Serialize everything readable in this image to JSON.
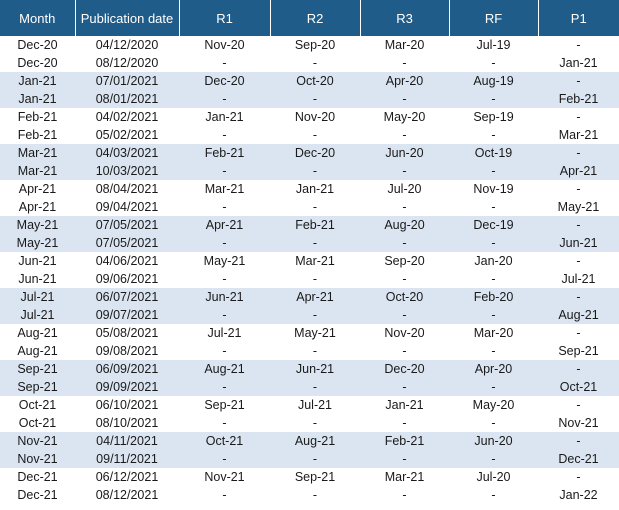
{
  "headers": [
    "Month",
    "Publication date",
    "R1",
    "R2",
    "R3",
    "RF",
    "P1"
  ],
  "rows": [
    [
      "Dec-20",
      "04/12/2020",
      "Nov-20",
      "Sep-20",
      "Mar-20",
      "Jul-19",
      "-"
    ],
    [
      "Dec-20",
      "08/12/2020",
      "-",
      "-",
      "-",
      "-",
      "Jan-21"
    ],
    [
      "Jan-21",
      "07/01/2021",
      "Dec-20",
      "Oct-20",
      "Apr-20",
      "Aug-19",
      "-"
    ],
    [
      "Jan-21",
      "08/01/2021",
      "-",
      "-",
      "-",
      "-",
      "Feb-21"
    ],
    [
      "Feb-21",
      "04/02/2021",
      "Jan-21",
      "Nov-20",
      "May-20",
      "Sep-19",
      "-"
    ],
    [
      "Feb-21",
      "05/02/2021",
      "-",
      "-",
      "-",
      "-",
      "Mar-21"
    ],
    [
      "Mar-21",
      "04/03/2021",
      "Feb-21",
      "Dec-20",
      "Jun-20",
      "Oct-19",
      "-"
    ],
    [
      "Mar-21",
      "10/03/2021",
      "-",
      "-",
      "-",
      "-",
      "Apr-21"
    ],
    [
      "Apr-21",
      "08/04/2021",
      "Mar-21",
      "Jan-21",
      "Jul-20",
      "Nov-19",
      "-"
    ],
    [
      "Apr-21",
      "09/04/2021",
      "-",
      "-",
      "-",
      "-",
      "May-21"
    ],
    [
      "May-21",
      "07/05/2021",
      "Apr-21",
      "Feb-21",
      "Aug-20",
      "Dec-19",
      "-"
    ],
    [
      "May-21",
      "07/05/2021",
      "-",
      "-",
      "-",
      "-",
      "Jun-21"
    ],
    [
      "Jun-21",
      "04/06/2021",
      "May-21",
      "Mar-21",
      "Sep-20",
      "Jan-20",
      "-"
    ],
    [
      "Jun-21",
      "09/06/2021",
      "-",
      "-",
      "-",
      "-",
      "Jul-21"
    ],
    [
      "Jul-21",
      "06/07/2021",
      "Jun-21",
      "Apr-21",
      "Oct-20",
      "Feb-20",
      "-"
    ],
    [
      "Jul-21",
      "09/07/2021",
      "-",
      "-",
      "-",
      "-",
      "Aug-21"
    ],
    [
      "Aug-21",
      "05/08/2021",
      "Jul-21",
      "May-21",
      "Nov-20",
      "Mar-20",
      "-"
    ],
    [
      "Aug-21",
      "09/08/2021",
      "-",
      "-",
      "-",
      "-",
      "Sep-21"
    ],
    [
      "Sep-21",
      "06/09/2021",
      "Aug-21",
      "Jun-21",
      "Dec-20",
      "Apr-20",
      "-"
    ],
    [
      "Sep-21",
      "09/09/2021",
      "-",
      "-",
      "-",
      "-",
      "Oct-21"
    ],
    [
      "Oct-21",
      "06/10/2021",
      "Sep-21",
      "Jul-21",
      "Jan-21",
      "May-20",
      "-"
    ],
    [
      "Oct-21",
      "08/10/2021",
      "-",
      "-",
      "-",
      "-",
      "Nov-21"
    ],
    [
      "Nov-21",
      "04/11/2021",
      "Oct-21",
      "Aug-21",
      "Feb-21",
      "Jun-20",
      "-"
    ],
    [
      "Nov-21",
      "09/11/2021",
      "-",
      "-",
      "-",
      "-",
      "Dec-21"
    ],
    [
      "Dec-21",
      "06/12/2021",
      "Nov-21",
      "Sep-21",
      "Mar-21",
      "Jul-20",
      "-"
    ],
    [
      "Dec-21",
      "08/12/2021",
      "-",
      "-",
      "-",
      "-",
      "Jan-22"
    ]
  ],
  "colors": {
    "header_bg": "#1f5c8a",
    "header_text": "#ffffff",
    "band_bg": "#dbe5f1",
    "row_bg": "#ffffff"
  }
}
